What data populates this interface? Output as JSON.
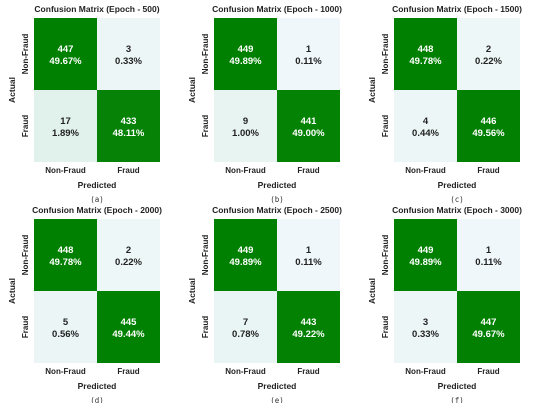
{
  "colors": {
    "high": "#008000",
    "low": "#f0f8fb",
    "mid_low": "#e2f1f8",
    "text_dark": "#222222",
    "text_light": "#ffffff"
  },
  "chart_data": [
    {
      "type": "heatmap",
      "title": "Confusion Matrix (Epoch - 500)",
      "xlabel": "Predicted",
      "ylabel": "Actual",
      "x_categories": [
        "Non-Fraud",
        "Fraud"
      ],
      "y_categories": [
        "Non-Fraud",
        "Fraud"
      ],
      "values": [
        [
          447,
          3
        ],
        [
          17,
          433
        ]
      ],
      "percentages": [
        [
          "49.67%",
          "0.33%"
        ],
        [
          "1.89%",
          "48.11%"
        ]
      ],
      "caption": "(a)"
    },
    {
      "type": "heatmap",
      "title": "Confusion Matrix (Epoch - 1000)",
      "xlabel": "Predicted",
      "ylabel": "Actual",
      "x_categories": [
        "Non-Fraud",
        "Fraud"
      ],
      "y_categories": [
        "Non-Fraud",
        "Fraud"
      ],
      "values": [
        [
          449,
          1
        ],
        [
          9,
          441
        ]
      ],
      "percentages": [
        [
          "49.89%",
          "0.11%"
        ],
        [
          "1.00%",
          "49.00%"
        ]
      ],
      "caption": "(b)"
    },
    {
      "type": "heatmap",
      "title": "Confusion Matrix (Epoch - 1500)",
      "xlabel": "Predicted",
      "ylabel": "Actual",
      "x_categories": [
        "Non-Fraud",
        "Fraud"
      ],
      "y_categories": [
        "Non-Fraud",
        "Fraud"
      ],
      "values": [
        [
          448,
          2
        ],
        [
          4,
          446
        ]
      ],
      "percentages": [
        [
          "49.78%",
          "0.22%"
        ],
        [
          "0.44%",
          "49.56%"
        ]
      ],
      "caption": "(c)"
    },
    {
      "type": "heatmap",
      "title": "Confusion Matrix (Epoch - 2000)",
      "xlabel": "Predicted",
      "ylabel": "Actual",
      "x_categories": [
        "Non-Fraud",
        "Fraud"
      ],
      "y_categories": [
        "Non-Fraud",
        "Fraud"
      ],
      "values": [
        [
          448,
          2
        ],
        [
          5,
          445
        ]
      ],
      "percentages": [
        [
          "49.78%",
          "0.22%"
        ],
        [
          "0.56%",
          "49.44%"
        ]
      ],
      "caption": "(d)"
    },
    {
      "type": "heatmap",
      "title": "Confusion Matrix (Epoch - 2500)",
      "xlabel": "Predicted",
      "ylabel": "Actual",
      "x_categories": [
        "Non-Fraud",
        "Fraud"
      ],
      "y_categories": [
        "Non-Fraud",
        "Fraud"
      ],
      "values": [
        [
          449,
          1
        ],
        [
          7,
          443
        ]
      ],
      "percentages": [
        [
          "49.89%",
          "0.11%"
        ],
        [
          "0.78%",
          "49.22%"
        ]
      ],
      "caption": "(e)"
    },
    {
      "type": "heatmap",
      "title": "Confusion Matrix (Epoch - 3000)",
      "xlabel": "Predicted",
      "ylabel": "Actual",
      "x_categories": [
        "Non-Fraud",
        "Fraud"
      ],
      "y_categories": [
        "Non-Fraud",
        "Fraud"
      ],
      "values": [
        [
          449,
          1
        ],
        [
          3,
          447
        ]
      ],
      "percentages": [
        [
          "49.89%",
          "0.11%"
        ],
        [
          "0.33%",
          "49.67%"
        ]
      ],
      "caption": "(f)"
    }
  ]
}
